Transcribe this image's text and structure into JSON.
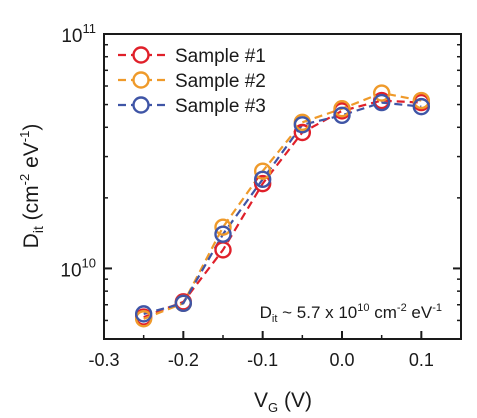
{
  "chart_data": {
    "type": "scatter",
    "x": [
      -0.25,
      -0.2,
      -0.15,
      -0.1,
      -0.05,
      0.0,
      0.05,
      0.1
    ],
    "series": [
      {
        "name": "Sample #1",
        "color": "#e0202a",
        "values": [
          6200000000.0,
          7200000000.0,
          12000000000.0,
          23000000000.0,
          38000000000.0,
          47000000000.0,
          52000000000.0,
          51000000000.0
        ]
      },
      {
        "name": "Sample #2",
        "color": "#ef9a2a",
        "values": [
          6100000000.0,
          7100000000.0,
          15000000000.0,
          26000000000.0,
          42000000000.0,
          48000000000.0,
          56000000000.0,
          52000000000.0
        ]
      },
      {
        "name": "Sample #3",
        "color": "#3f55a6",
        "values": [
          6400000000.0,
          7100000000.0,
          14000000000.0,
          24000000000.0,
          41000000000.0,
          45000000000.0,
          51000000000.0,
          49000000000.0
        ]
      }
    ],
    "xlim": [
      -0.3,
      0.15
    ],
    "ylim": [
      5000000000.0,
      100000000000.0
    ],
    "yscale": "log",
    "xticks": [
      -0.3,
      -0.2,
      -0.1,
      0.0,
      0.1
    ],
    "xtick_labels": [
      "-0.3",
      "-0.2",
      "-0.1",
      "0.0",
      "0.1"
    ],
    "ytick_labels": [
      {
        "base": "10",
        "exp": "10",
        "value": 10000000000.0
      },
      {
        "base": "10",
        "exp": "11",
        "value": 100000000000.0
      }
    ],
    "xlabel": {
      "main": "V",
      "sub": "G",
      "unit": " (V)"
    },
    "ylabel": {
      "main": "D",
      "sub": "it",
      "unit_open": " (cm",
      "exp1": "-2",
      "mid": " eV",
      "exp2": "-1",
      "close": ")"
    },
    "legend_position": "top-left",
    "annotation": {
      "main": "D",
      "sub": "it",
      "text1": " ~ 5.7 x 10",
      "exp1": "10",
      "text2": " cm",
      "exp2": "-2",
      "text3": " eV",
      "exp3": "-1"
    },
    "grid": false,
    "line_style": "dashed",
    "marker": "open-circle"
  }
}
